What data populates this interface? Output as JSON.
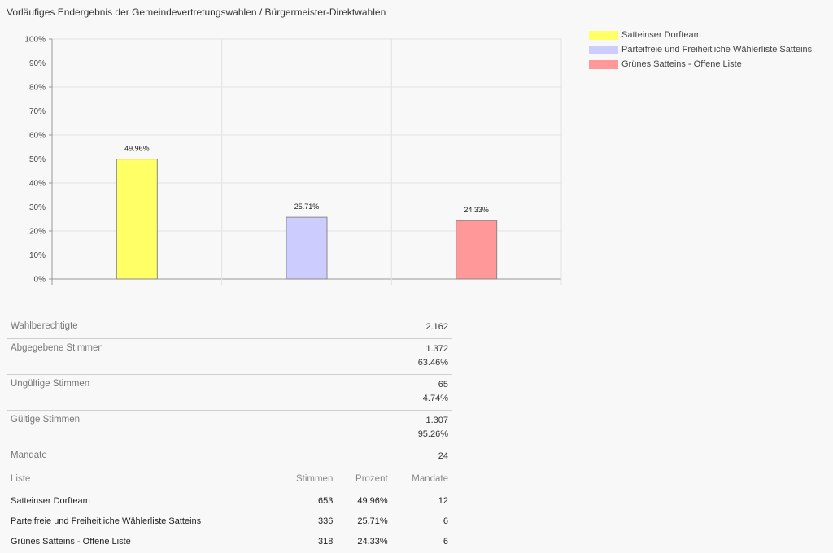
{
  "title": "Vorläufiges Endergebnis der Gemeindevertretungswahlen / Bürgermeister-Direktwahlen",
  "chart_data": {
    "type": "bar",
    "categories": [
      "Satteinser Dorfteam",
      "Parteifreie und Freiheitliche Wählerliste Satteins",
      "Grünes Satteins - Offene Liste"
    ],
    "values": [
      49.96,
      25.71,
      24.33
    ],
    "value_labels": [
      "49.96%",
      "25.71%",
      "24.33%"
    ],
    "colors": [
      "#ffff66",
      "#ccccff",
      "#ff9999"
    ],
    "ylim": [
      0,
      100
    ],
    "yticks": [
      "0%",
      "10%",
      "20%",
      "30%",
      "40%",
      "50%",
      "60%",
      "70%",
      "80%",
      "90%",
      "100%"
    ],
    "grid": true,
    "legend": "top-right"
  },
  "legend": [
    {
      "label": "Satteinser Dorfteam",
      "color": "#ffff66"
    },
    {
      "label": "Parteifreie und Freiheitliche Wählerliste Satteins",
      "color": "#ccccff"
    },
    {
      "label": "Grünes Satteins - Offene Liste",
      "color": "#ff9999"
    }
  ],
  "stats": {
    "wahlberechtigte": {
      "label": "Wahlberechtigte",
      "value": "2.162"
    },
    "abgegebene": {
      "label": "Abgegebene Stimmen",
      "value": "1.372",
      "percent": "63.46%"
    },
    "ungueltige": {
      "label": "Ungültige Stimmen",
      "value": "65",
      "percent": "4.74%"
    },
    "gueltige": {
      "label": "Gültige Stimmen",
      "value": "1.307",
      "percent": "95.26%"
    },
    "mandate": {
      "label": "Mandate",
      "value": "24"
    }
  },
  "table": {
    "headers": {
      "liste": "Liste",
      "stimmen": "Stimmen",
      "prozent": "Prozent",
      "mandate": "Mandate"
    },
    "rows": [
      {
        "liste": "Satteinser Dorfteam",
        "stimmen": "653",
        "prozent": "49.96%",
        "mandate": "12"
      },
      {
        "liste": "Parteifreie und Freiheitliche Wählerliste Satteins",
        "stimmen": "336",
        "prozent": "25.71%",
        "mandate": "6"
      },
      {
        "liste": "Grünes Satteins - Offene Liste",
        "stimmen": "318",
        "prozent": "24.33%",
        "mandate": "6"
      }
    ]
  }
}
